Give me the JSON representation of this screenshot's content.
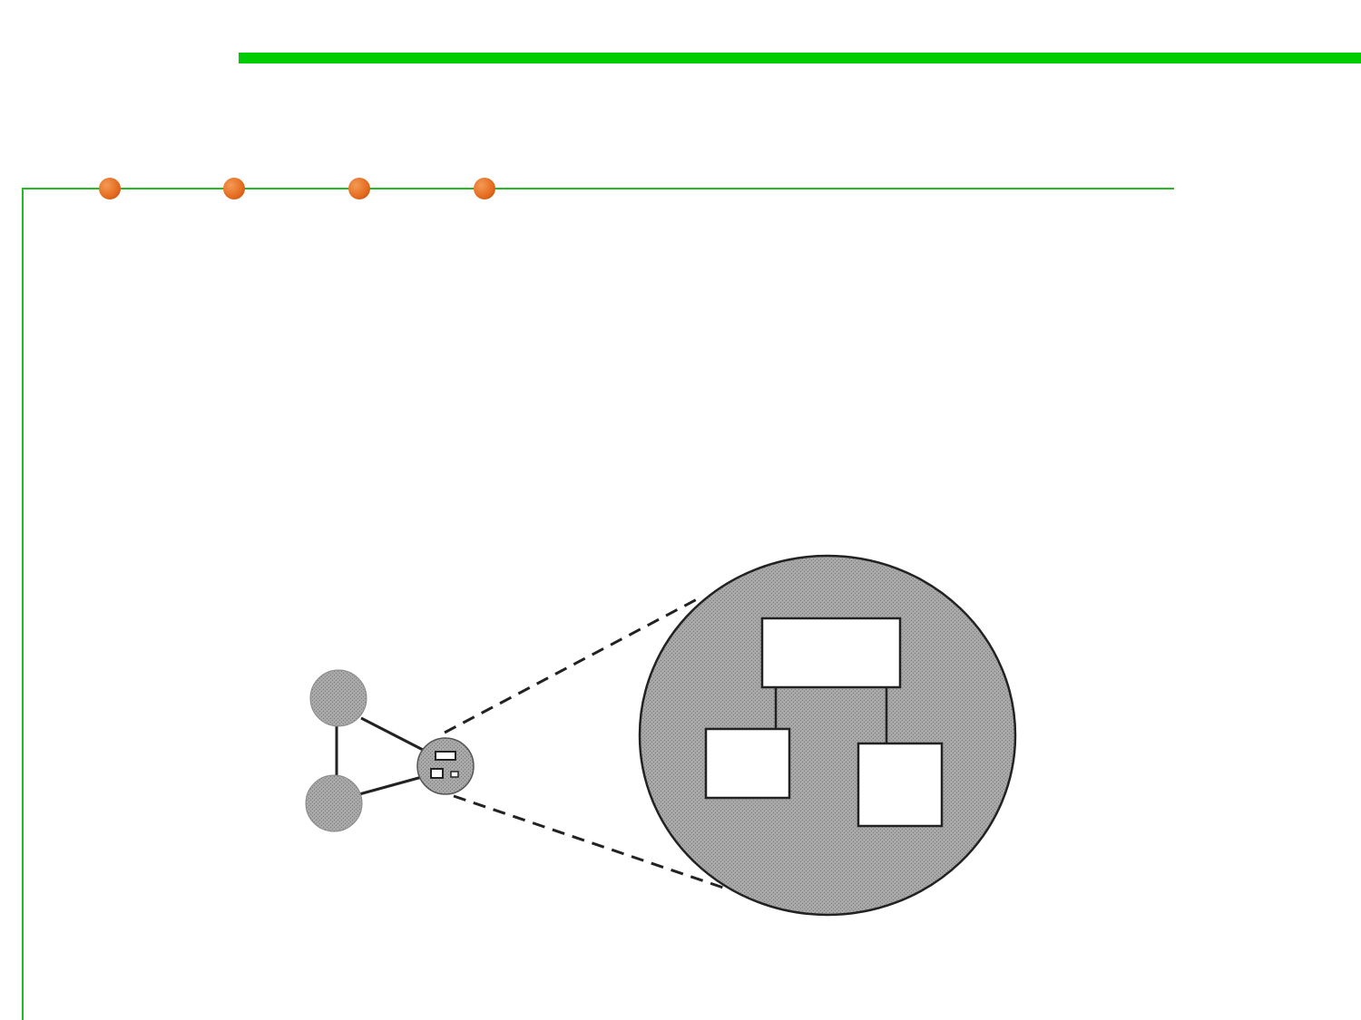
{
  "colors": {
    "accent_green": "#00cc00",
    "frame_green": "#22bb22",
    "bullet_orange": "#e46a1e",
    "bullet_border": "#b24a0c",
    "node_fill": "#9a9a9a",
    "node_stroke": "#333333",
    "box_fill": "#ffffff",
    "line": "#222222"
  },
  "decoration": {
    "bullets": [
      "bullet-1",
      "bullet-2",
      "bullet-3",
      "bullet-4"
    ]
  },
  "diagram": {
    "small_nodes": [
      "node-top-left",
      "node-bottom-left",
      "node-zoomed"
    ],
    "edges": [
      [
        "node-top-left",
        "node-bottom-left"
      ],
      [
        "node-top-left",
        "node-zoomed"
      ],
      [
        "node-bottom-left",
        "node-zoomed"
      ]
    ],
    "zoom_view": {
      "boxes": [
        "box-top",
        "box-bottom-left",
        "box-bottom-right"
      ],
      "connections": [
        [
          "box-top",
          "box-bottom-left"
        ],
        [
          "box-top",
          "box-bottom-right"
        ]
      ],
      "connector_style": "dashed"
    }
  }
}
